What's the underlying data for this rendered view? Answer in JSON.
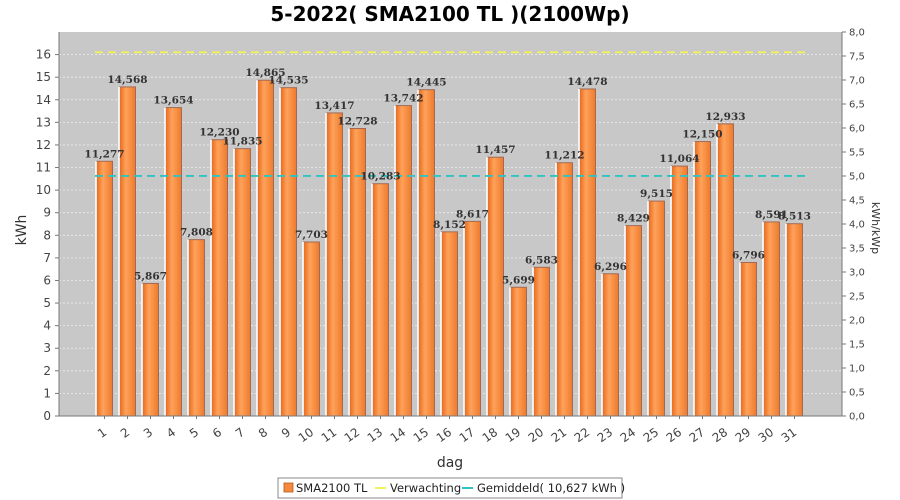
{
  "chart_data": {
    "type": "bar",
    "title": "5-2022( SMA2100 TL )(2100Wp)",
    "xlabel": "dag",
    "ylabel": "kWh",
    "y2label": "kWh/kWp",
    "ylim": [
      0,
      17
    ],
    "y2lim": [
      0,
      8.0
    ],
    "yticks": [
      0,
      1,
      2,
      3,
      4,
      5,
      6,
      7,
      8,
      9,
      10,
      11,
      12,
      13,
      14,
      15,
      16
    ],
    "y2ticks": [
      "0,0",
      "0,5",
      "1,0",
      "1,5",
      "2,0",
      "2,5",
      "3,0",
      "3,5",
      "4,0",
      "4,5",
      "5,0",
      "5,5",
      "6,0",
      "6,5",
      "7,0",
      "7,5",
      "8,0"
    ],
    "grid": true,
    "legend_position": "bottom",
    "categories": [
      "1",
      "2",
      "3",
      "4",
      "5",
      "6",
      "7",
      "8",
      "9",
      "10",
      "11",
      "12",
      "13",
      "14",
      "15",
      "16",
      "17",
      "18",
      "19",
      "20",
      "21",
      "22",
      "23",
      "24",
      "25",
      "26",
      "27",
      "28",
      "29",
      "30",
      "31"
    ],
    "series": [
      {
        "name": "SMA2100 TL",
        "color": "#f58a3c",
        "values": [
          11.277,
          14.568,
          5.867,
          13.654,
          7.808,
          12.23,
          11.835,
          14.865,
          14.535,
          7.703,
          13.417,
          12.728,
          10.283,
          13.742,
          14.445,
          8.152,
          8.617,
          11.457,
          5.699,
          6.583,
          11.212,
          14.478,
          6.296,
          8.429,
          9.515,
          11.064,
          12.15,
          12.933,
          6.796,
          8.591,
          8.513
        ],
        "labels": [
          "11,277",
          "14,568",
          "5,867",
          "13,654",
          "7,808",
          "12,230",
          "11,835",
          "14,865",
          "14,535",
          "7,703",
          "13,417",
          "12,728",
          "10,283",
          "13,742",
          "14,445",
          "8,152",
          "8,617",
          "11,457",
          "5,699",
          "6,583",
          "11,212",
          "14,478",
          "6,296",
          "8,429",
          "9,515",
          "11,064",
          "12,150",
          "12,933",
          "6,796",
          "8,591",
          "8,513"
        ]
      }
    ],
    "expected": {
      "name": "Verwachting",
      "value": 16.1,
      "color": "#f2f25a"
    },
    "average": {
      "name": "Gemiddeld( 10,627 kWh )",
      "value": 10.627,
      "color": "#2ec4c4"
    }
  }
}
